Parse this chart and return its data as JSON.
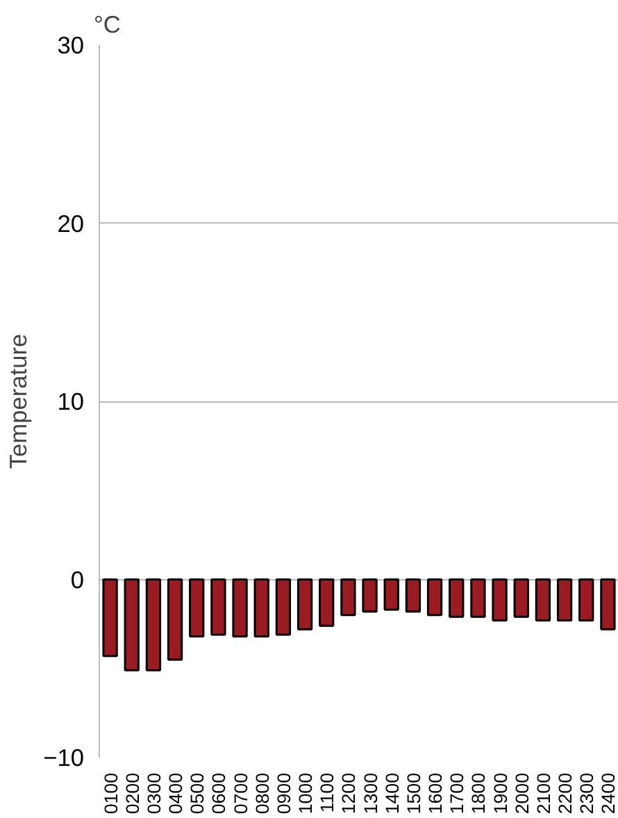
{
  "chart_data": {
    "type": "bar",
    "ylabel": "Temperature",
    "annotations": [
      "°C"
    ],
    "categories": [
      "0100",
      "0200",
      "0300",
      "0400",
      "0500",
      "0600",
      "0700",
      "0800",
      "0900",
      "1000",
      "1100",
      "1200",
      "1300",
      "1400",
      "1500",
      "1600",
      "1700",
      "1800",
      "1900",
      "2000",
      "2100",
      "2200",
      "2300",
      "2400"
    ],
    "values": [
      -4.3,
      -5.1,
      -5.1,
      -4.5,
      -3.2,
      -3.1,
      -3.2,
      -3.2,
      -3.1,
      -2.8,
      -2.6,
      -2.0,
      -1.8,
      -1.7,
      -1.8,
      -2.0,
      -2.1,
      -2.1,
      -2.3,
      -2.1,
      -2.3,
      -2.3,
      -2.3,
      -2.8
    ],
    "color": "#9b1b22",
    "ylim": [
      -10,
      30
    ],
    "yticks": [
      -10,
      0,
      10,
      20,
      30
    ],
    "grid": "y"
  }
}
